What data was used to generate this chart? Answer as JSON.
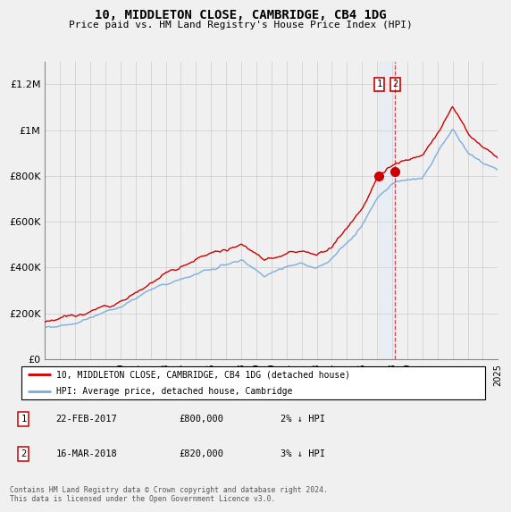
{
  "title": "10, MIDDLETON CLOSE, CAMBRIDGE, CB4 1DG",
  "subtitle": "Price paid vs. HM Land Registry's House Price Index (HPI)",
  "legend_line1": "10, MIDDLETON CLOSE, CAMBRIDGE, CB4 1DG (detached house)",
  "legend_line2": "HPI: Average price, detached house, Cambridge",
  "annotation1": {
    "label": "1",
    "date": "22-FEB-2017",
    "price": "£800,000",
    "pct": "2% ↓ HPI"
  },
  "annotation2": {
    "label": "2",
    "date": "16-MAR-2018",
    "price": "£820,000",
    "pct": "3% ↓ HPI"
  },
  "footnote": "Contains HM Land Registry data © Crown copyright and database right 2024.\nThis data is licensed under the Open Government Licence v3.0.",
  "hpi_color": "#7aaddc",
  "price_color": "#cc0000",
  "vline_color": "#cc0000",
  "dot_color": "#cc0000",
  "shade_color": "#d0e8f8",
  "bg_color": "#f0f0f0",
  "plot_bg": "#f0f0f0",
  "ylim": [
    0,
    1300000
  ],
  "yticks": [
    0,
    200000,
    400000,
    600000,
    800000,
    1000000,
    1200000
  ],
  "ytick_labels": [
    "£0",
    "£200K",
    "£400K",
    "£600K",
    "£800K",
    "£1M",
    "£1.2M"
  ],
  "year_start": 1995,
  "year_end": 2025,
  "sale1_year": 2017.13,
  "sale2_year": 2018.2,
  "sale1_price": 800000,
  "sale2_price": 820000
}
